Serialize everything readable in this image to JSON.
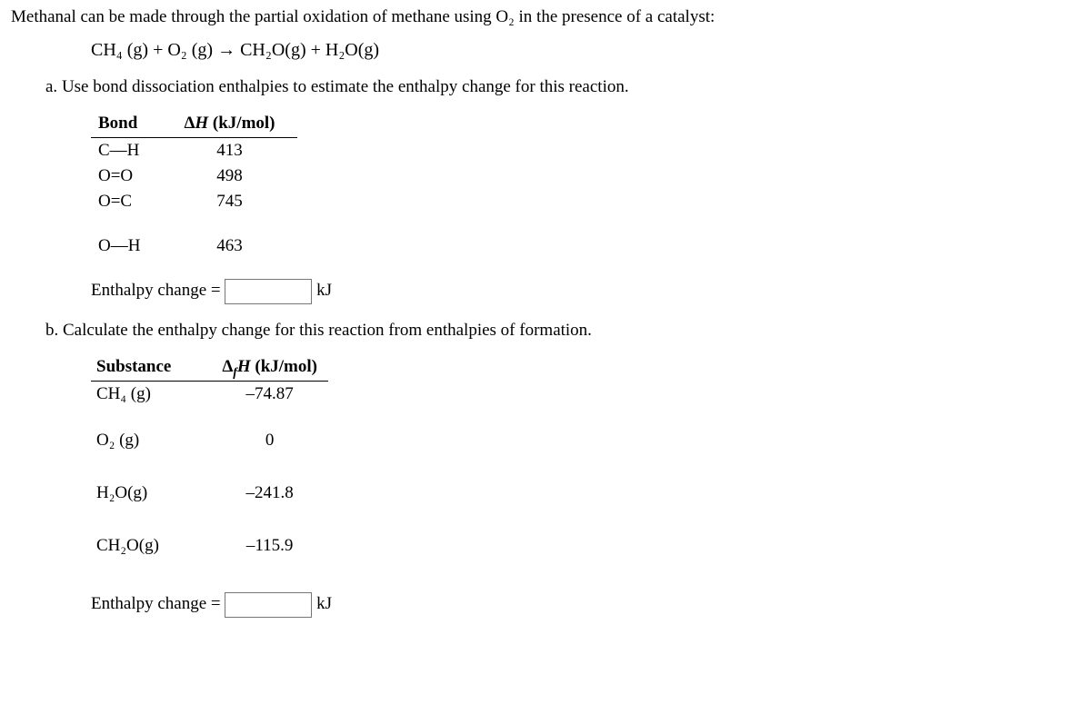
{
  "intro": "Methanal can be made through the partial oxidation of methane using O₂ in the presence of a catalyst:",
  "equation": "CH₄ (g) + O₂ (g) → CH₂O(g) + H₂O(g)",
  "partA": {
    "label": "a.",
    "text": "Use bond dissociation enthalpies to estimate the enthalpy change for this reaction.",
    "table": {
      "header_bond": "Bond",
      "header_dh": "Δ",
      "header_dh_h": "H",
      "header_dh_unit": " (kJ/mol)",
      "rows": [
        {
          "bond": "C—H",
          "dh": "413"
        },
        {
          "bond": "O=O",
          "dh": "498"
        },
        {
          "bond": "O=C",
          "dh": "745"
        }
      ],
      "row_spaced": {
        "bond": "O—H",
        "dh": "463"
      }
    },
    "answer_label": "Enthalpy change =",
    "answer_unit": "kJ"
  },
  "partB": {
    "label": "b.",
    "text": "Calculate the enthalpy change for this reaction from enthalpies of formation.",
    "table": {
      "header_substance": "Substance",
      "header_dfh_delta": "Δ",
      "header_dfh_f": "f",
      "header_dfh_h": "H",
      "header_dfh_unit": " (kJ/mol)",
      "rows": [
        {
          "substance": "CH₄ (g)",
          "val": "–74.87"
        },
        {
          "substance": "O₂ (g)",
          "val": "0"
        },
        {
          "substance": "H₂O(g)",
          "val": "–241.8"
        },
        {
          "substance": "CH₂O(g)",
          "val": "–115.9"
        }
      ]
    },
    "answer_label": "Enthalpy change =",
    "answer_unit": "kJ"
  }
}
